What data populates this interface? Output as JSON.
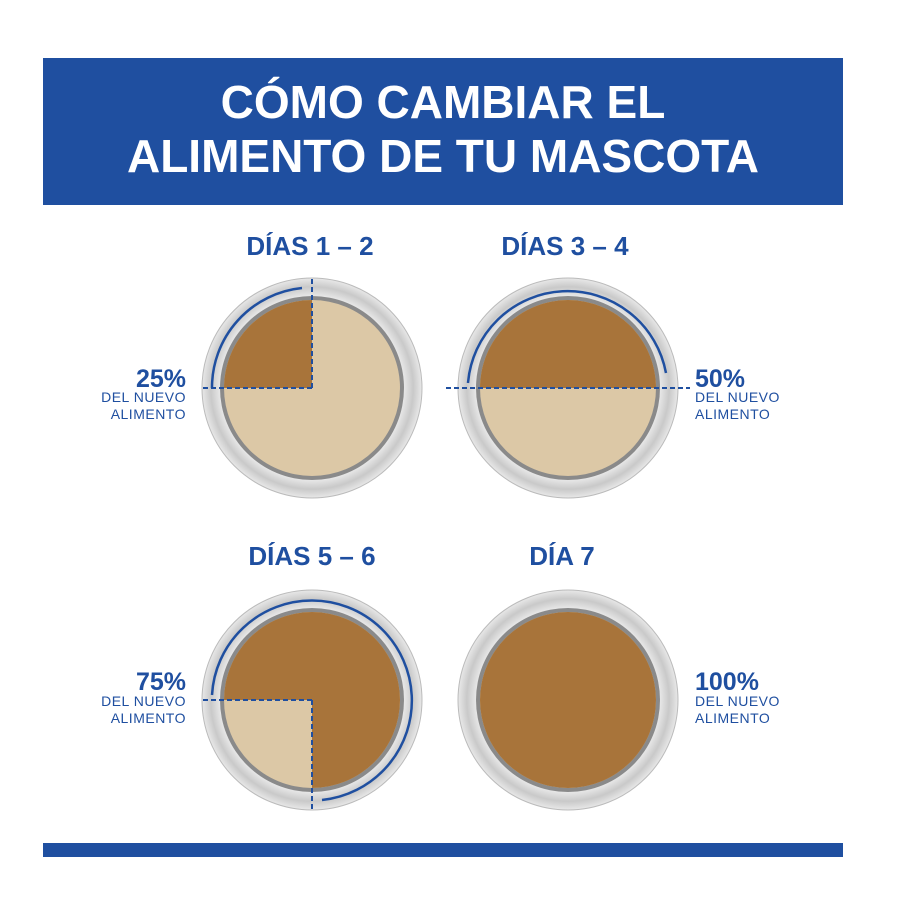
{
  "header": {
    "title_lines": [
      "CÓMO CAMBIAR EL",
      "ALIMENTO DE TU MASCOTA"
    ]
  },
  "panels": [
    {
      "days": "DÍAS 1 – 2",
      "percent": "25%",
      "caption_lines": [
        "DEL NUEVO",
        "ALIMENTO"
      ]
    },
    {
      "days": "DÍAS 3 – 4",
      "percent": "50%",
      "caption_lines": [
        "DEL NUEVO",
        "ALIMENTO"
      ]
    },
    {
      "days": "DÍAS 5 – 6",
      "percent": "75%",
      "caption_lines": [
        "DEL NUEVO",
        "ALIMENTO"
      ]
    },
    {
      "days": "DÍA 7",
      "percent": "100%",
      "caption_lines": [
        "DEL NUEVO",
        "ALIMENTO"
      ]
    }
  ]
}
